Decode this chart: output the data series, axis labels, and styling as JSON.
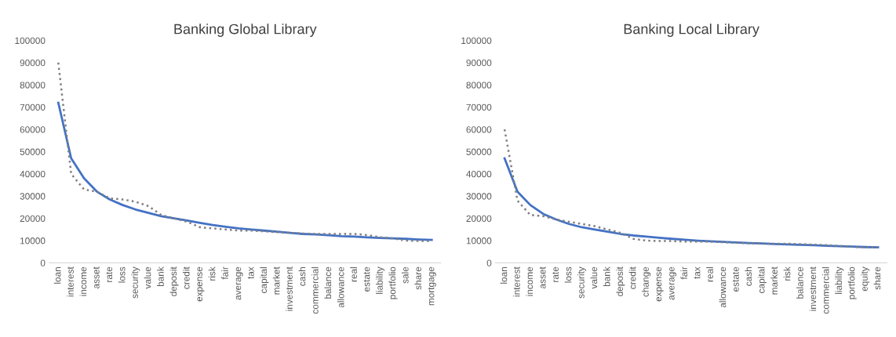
{
  "chart_data": [
    {
      "type": "line",
      "title": "Banking Global Library",
      "categories": [
        "loan",
        "interest",
        "income",
        "asset",
        "rate",
        "loss",
        "security",
        "value",
        "bank",
        "deposit",
        "credit",
        "expense",
        "risk",
        "fair",
        "average",
        "tax",
        "capital",
        "market",
        "investment",
        "cash",
        "commercial",
        "balance",
        "allowance",
        "real",
        "estate",
        "liability",
        "portfolio",
        "sale",
        "share",
        "mortgage"
      ],
      "series": [
        {
          "color": "#7f7f7f",
          "line_style": "dotted",
          "values": [
            90000,
            40000,
            33000,
            32000,
            29000,
            28500,
            27500,
            25500,
            21500,
            20000,
            18500,
            16000,
            15500,
            15000,
            14500,
            14500,
            14200,
            13800,
            13500,
            13200,
            13000,
            13000,
            13000,
            13000,
            12500,
            11500,
            11000,
            10000,
            9800,
            9800
          ]
        },
        {
          "color": "#4472c4",
          "line_style": "solid",
          "values": [
            72000,
            47000,
            38000,
            32000,
            28500,
            26000,
            24000,
            22500,
            21000,
            20000,
            19000,
            18000,
            17000,
            16200,
            15500,
            15000,
            14500,
            14000,
            13500,
            13000,
            12800,
            12400,
            12000,
            11800,
            11500,
            11200,
            11000,
            10800,
            10500,
            10300
          ]
        }
      ],
      "ylim": [
        0,
        100000
      ],
      "yticks": [
        0,
        10000,
        20000,
        30000,
        40000,
        50000,
        60000,
        70000,
        80000,
        90000,
        100000
      ],
      "grid": false,
      "legend": false
    },
    {
      "type": "line",
      "title": "Banking Local Library",
      "categories": [
        "loan",
        "interest",
        "income",
        "asset",
        "rate",
        "loss",
        "security",
        "value",
        "bank",
        "deposit",
        "credit",
        "change",
        "expense",
        "average",
        "fair",
        "tax",
        "real",
        "allowance",
        "estate",
        "cash",
        "capital",
        "market",
        "risk",
        "balance",
        "investment",
        "commercial",
        "liability",
        "portfolio",
        "equity",
        "share"
      ],
      "series": [
        {
          "color": "#7f7f7f",
          "line_style": "dotted",
          "values": [
            60000,
            28000,
            21500,
            21000,
            19500,
            18500,
            17500,
            16500,
            15000,
            13500,
            10800,
            10000,
            9800,
            9800,
            9600,
            9600,
            9500,
            9300,
            9000,
            8800,
            8600,
            8600,
            8600,
            8400,
            8200,
            8000,
            7600,
            7200,
            7000,
            7000
          ]
        },
        {
          "color": "#4472c4",
          "line_style": "solid",
          "values": [
            47000,
            32000,
            26000,
            22000,
            19500,
            17500,
            16000,
            15000,
            14000,
            13000,
            12300,
            11800,
            11300,
            10800,
            10400,
            10000,
            9700,
            9400,
            9200,
            8900,
            8700,
            8500,
            8300,
            8100,
            7900,
            7700,
            7500,
            7300,
            7100,
            7000
          ]
        }
      ],
      "ylim": [
        0,
        100000
      ],
      "yticks": [
        0,
        10000,
        20000,
        30000,
        40000,
        50000,
        60000,
        70000,
        80000,
        90000,
        100000
      ],
      "grid": false,
      "legend": false
    }
  ]
}
